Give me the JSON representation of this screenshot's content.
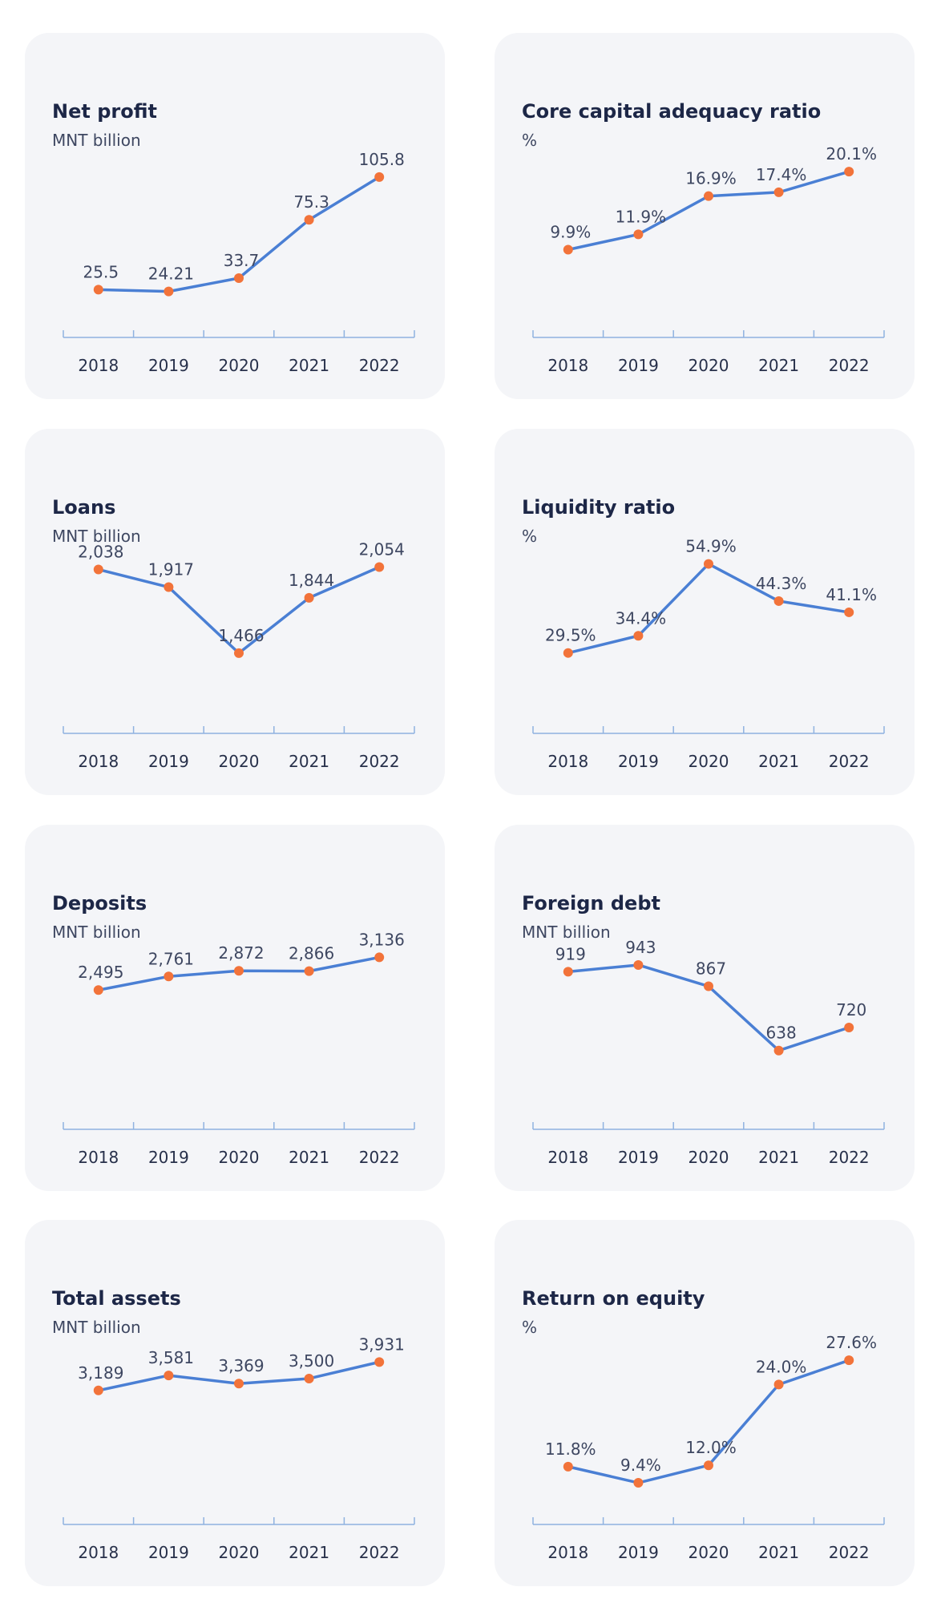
{
  "colors": {
    "line": "#4a7fd4",
    "marker": "#f2733a",
    "axis": "#8fb2e0",
    "text": "#3e4761",
    "card_bg": "#f4f5f8"
  },
  "chart_data": [
    {
      "type": "line",
      "title": "Net profit",
      "unit": "MNT billion",
      "categories": [
        "2018",
        "2019",
        "2020",
        "2021",
        "2022"
      ],
      "values": [
        25.5,
        24.21,
        33.7,
        75.3,
        105.8
      ],
      "labels": [
        "25.5",
        "24.21",
        "33.7",
        "75.3",
        "105.8"
      ],
      "ylim": [
        0,
        120
      ]
    },
    {
      "type": "line",
      "title": "Core capital adequacy ratio",
      "unit": "%",
      "categories": [
        "2018",
        "2019",
        "2020",
        "2021",
        "2022"
      ],
      "values": [
        9.9,
        11.9,
        16.9,
        17.4,
        20.1
      ],
      "labels": [
        "9.9%",
        "11.9%",
        "16.9%",
        "17.4%",
        "20.1%"
      ],
      "ylim": [
        0,
        22
      ]
    },
    {
      "type": "line",
      "title": "Loans",
      "unit": "MNT billion",
      "categories": [
        "2018",
        "2019",
        "2020",
        "2021",
        "2022"
      ],
      "values": [
        2038,
        1917,
        1466,
        1844,
        2054
      ],
      "labels": [
        "2,038",
        "1,917",
        "1,466",
        "1,844",
        "2,054"
      ],
      "ylim": [
        1000,
        2150
      ]
    },
    {
      "type": "line",
      "title": "Liquidity ratio",
      "unit": "%",
      "categories": [
        "2018",
        "2019",
        "2020",
        "2021",
        "2022"
      ],
      "values": [
        29.5,
        34.4,
        54.9,
        44.3,
        41.1
      ],
      "labels": [
        "29.5%",
        "34.4%",
        "54.9%",
        "44.3%",
        "41.1%"
      ],
      "ylim": [
        10,
        58
      ]
    },
    {
      "type": "line",
      "title": "Deposits",
      "unit": "MNT billion",
      "categories": [
        "2018",
        "2019",
        "2020",
        "2021",
        "2022"
      ],
      "values": [
        2495,
        2761,
        2872,
        2866,
        3136
      ],
      "labels": [
        "2,495",
        "2,761",
        "2,872",
        "2,866",
        "3,136"
      ],
      "ylim": [
        0,
        3300
      ]
    },
    {
      "type": "line",
      "title": "Foreign debt",
      "unit": "MNT billion",
      "categories": [
        "2018",
        "2019",
        "2020",
        "2021",
        "2022"
      ],
      "values": [
        919,
        943,
        867,
        638,
        720
      ],
      "labels": [
        "919",
        "943",
        "867",
        "638",
        "720"
      ],
      "ylim": [
        400,
        1000
      ]
    },
    {
      "type": "line",
      "title": "Total assets",
      "unit": "MNT billion",
      "categories": [
        "2018",
        "2019",
        "2020",
        "2021",
        "2022"
      ],
      "values": [
        3189,
        3581,
        3369,
        3500,
        3931
      ],
      "labels": [
        "3,189",
        "3,581",
        "3,369",
        "3,500",
        "3,931"
      ],
      "ylim": [
        0,
        4400
      ]
    },
    {
      "type": "line",
      "title": "Return on equity",
      "unit": "%",
      "categories": [
        "2018",
        "2019",
        "2020",
        "2021",
        "2022"
      ],
      "values": [
        11.8,
        9.4,
        12.0,
        24.0,
        27.6
      ],
      "labels": [
        "11.8%",
        "9.4%",
        "12.0%",
        "24.0%",
        "27.6%"
      ],
      "ylim": [
        5,
        30
      ]
    }
  ]
}
